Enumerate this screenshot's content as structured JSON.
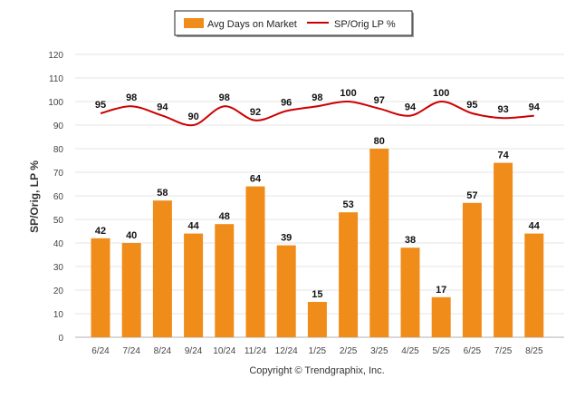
{
  "legend": {
    "bar_label": "Avg Days on Market",
    "line_label": "SP/Orig LP %"
  },
  "footer": {
    "copyright": "Copyright © Trendgraphix, Inc."
  },
  "chart_data": {
    "type": "bar",
    "title": "",
    "xlabel": "",
    "ylabel": "SP/Orig, LP %",
    "ylim": [
      0,
      120
    ],
    "yticks": [
      0,
      10,
      20,
      30,
      40,
      50,
      60,
      70,
      80,
      90,
      100,
      110,
      120
    ],
    "grid": true,
    "legend_position": "top-center",
    "categories": [
      "6/24",
      "7/24",
      "8/24",
      "9/24",
      "10/24",
      "11/24",
      "12/24",
      "1/25",
      "2/25",
      "3/25",
      "4/25",
      "5/25",
      "6/25",
      "7/25",
      "8/25"
    ],
    "series": [
      {
        "name": "Avg Days on Market",
        "kind": "bar",
        "color": "#F08C1A",
        "values": [
          42,
          40,
          58,
          44,
          48,
          64,
          39,
          15,
          53,
          80,
          38,
          17,
          57,
          74,
          44
        ]
      },
      {
        "name": "SP/Orig LP %",
        "kind": "line",
        "color": "#CC0000",
        "values": [
          95,
          98,
          94,
          90,
          98,
          92,
          96,
          98,
          100,
          97,
          94,
          100,
          95,
          93,
          94
        ]
      }
    ]
  }
}
